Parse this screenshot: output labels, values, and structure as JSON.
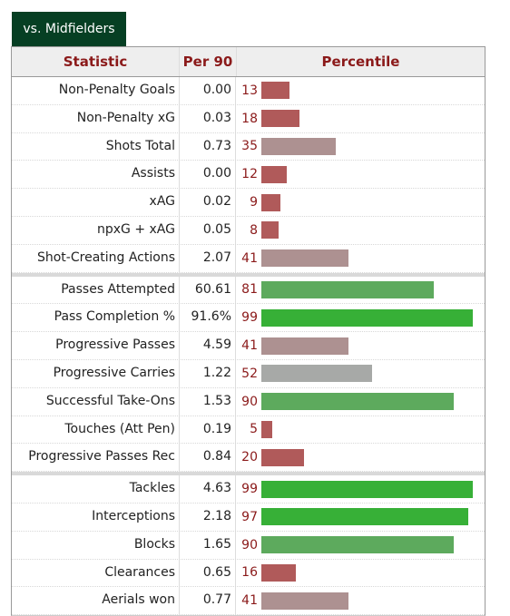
{
  "tab": {
    "label": "vs. Midfielders"
  },
  "headers": {
    "statistic": "Statistic",
    "per90": "Per 90",
    "percentile": "Percentile"
  },
  "colors": {
    "low": "#b05a5a",
    "midlow": "#ad9191",
    "mid": "#a7a9a7",
    "high": "#5daa5d",
    "top": "#37b037"
  },
  "groups": [
    [
      {
        "stat": "Non-Penalty Goals",
        "per90": "0.00",
        "pct": 13
      },
      {
        "stat": "Non-Penalty xG",
        "per90": "0.03",
        "pct": 18
      },
      {
        "stat": "Shots Total",
        "per90": "0.73",
        "pct": 35
      },
      {
        "stat": "Assists",
        "per90": "0.00",
        "pct": 12
      },
      {
        "stat": "xAG",
        "per90": "0.02",
        "pct": 9
      },
      {
        "stat": "npxG + xAG",
        "per90": "0.05",
        "pct": 8
      },
      {
        "stat": "Shot-Creating Actions",
        "per90": "2.07",
        "pct": 41
      }
    ],
    [
      {
        "stat": "Passes Attempted",
        "per90": "60.61",
        "pct": 81
      },
      {
        "stat": "Pass Completion %",
        "per90": "91.6%",
        "pct": 99
      },
      {
        "stat": "Progressive Passes",
        "per90": "4.59",
        "pct": 41
      },
      {
        "stat": "Progressive Carries",
        "per90": "1.22",
        "pct": 52
      },
      {
        "stat": "Successful Take-Ons",
        "per90": "1.53",
        "pct": 90
      },
      {
        "stat": "Touches (Att Pen)",
        "per90": "0.19",
        "pct": 5
      },
      {
        "stat": "Progressive Passes Rec",
        "per90": "0.84",
        "pct": 20
      }
    ],
    [
      {
        "stat": "Tackles",
        "per90": "4.63",
        "pct": 99
      },
      {
        "stat": "Interceptions",
        "per90": "2.18",
        "pct": 97
      },
      {
        "stat": "Blocks",
        "per90": "1.65",
        "pct": 90
      },
      {
        "stat": "Clearances",
        "per90": "0.65",
        "pct": 16
      },
      {
        "stat": "Aerials won",
        "per90": "0.77",
        "pct": 41
      }
    ]
  ]
}
